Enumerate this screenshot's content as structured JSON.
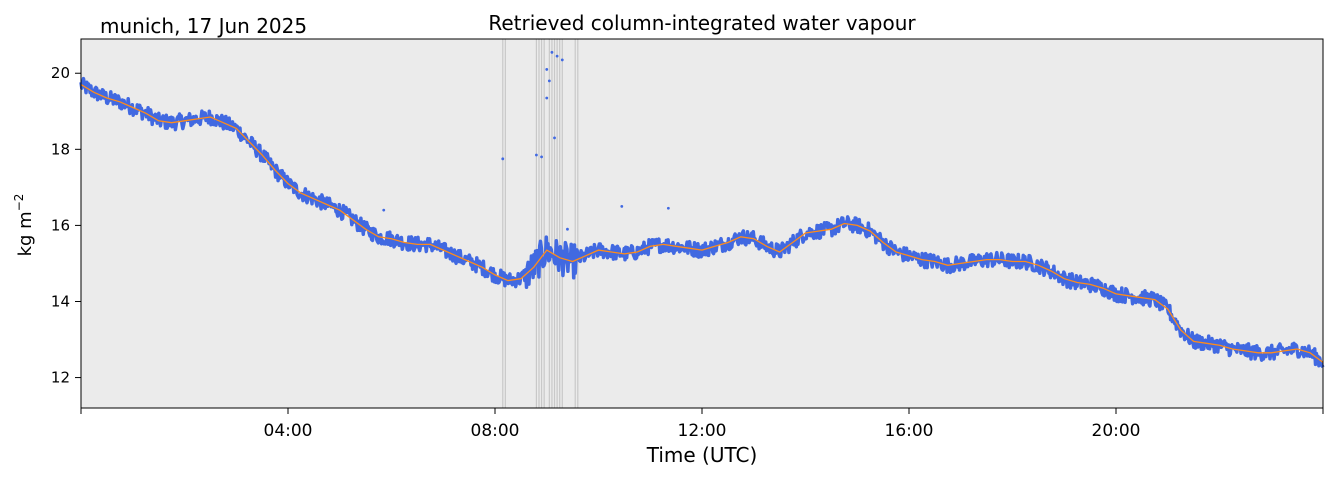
{
  "header": {
    "location_date": "munich, 17 Jun 2025"
  },
  "chart_data": {
    "type": "line",
    "title": "Retrieved column-integrated water vapour",
    "xlabel": "Time (UTC)",
    "ylabel_base": "kg m",
    "ylabel_exp": "−2",
    "xlim_hours": [
      0,
      24
    ],
    "ylim": [
      11.2,
      20.9
    ],
    "x_ticks": [
      {
        "hour": 4,
        "label": "04:00"
      },
      {
        "hour": 8,
        "label": "08:00"
      },
      {
        "hour": 12,
        "label": "12:00"
      },
      {
        "hour": 16,
        "label": "16:00"
      },
      {
        "hour": 20,
        "label": "20:00"
      }
    ],
    "y_ticks": [
      12,
      14,
      16,
      18,
      20
    ],
    "grid": false,
    "colors": {
      "background": "#ebebeb",
      "raw_series": "#4169e1",
      "smoothed_series": "#ff8c1a",
      "flag_lines": "#c8c8c8"
    },
    "series": [
      {
        "role": "raw",
        "x_hours": [
          0.0,
          0.25,
          0.5,
          0.75,
          1.0,
          1.25,
          1.5,
          1.75,
          2.0,
          2.25,
          2.5,
          2.75,
          3.0,
          3.25,
          3.5,
          3.75,
          4.0,
          4.25,
          4.5,
          4.75,
          5.0,
          5.25,
          5.5,
          5.75,
          6.0,
          6.25,
          6.5,
          6.75,
          7.0,
          7.25,
          7.5,
          7.75,
          8.0,
          8.25,
          8.5,
          8.75,
          9.0,
          9.25,
          9.5,
          9.75,
          10.0,
          10.25,
          10.5,
          10.75,
          11.0,
          11.25,
          11.5,
          11.75,
          12.0,
          12.25,
          12.5,
          12.75,
          13.0,
          13.25,
          13.5,
          13.75,
          14.0,
          14.25,
          14.5,
          14.75,
          15.0,
          15.25,
          15.5,
          15.75,
          16.0,
          16.25,
          16.5,
          16.75,
          17.0,
          17.25,
          17.5,
          17.75,
          18.0,
          18.25,
          18.5,
          18.75,
          19.0,
          19.25,
          19.5,
          19.75,
          20.0,
          20.25,
          20.5,
          20.75,
          21.0,
          21.25,
          21.5,
          21.75,
          22.0,
          22.25,
          22.5,
          22.75,
          23.0,
          23.25,
          23.5,
          23.75,
          24.0
        ],
        "y_mean": [
          19.7,
          19.5,
          19.35,
          19.25,
          19.1,
          18.95,
          18.75,
          18.7,
          18.75,
          18.8,
          18.85,
          18.7,
          18.55,
          18.2,
          17.85,
          17.45,
          17.1,
          16.85,
          16.7,
          16.55,
          16.4,
          16.15,
          15.9,
          15.7,
          15.65,
          15.55,
          15.5,
          15.5,
          15.35,
          15.2,
          15.05,
          14.9,
          14.7,
          14.55,
          14.6,
          14.9,
          15.35,
          15.15,
          15.05,
          15.2,
          15.35,
          15.3,
          15.25,
          15.3,
          15.45,
          15.5,
          15.45,
          15.4,
          15.35,
          15.45,
          15.55,
          15.7,
          15.65,
          15.45,
          15.3,
          15.55,
          15.8,
          15.85,
          15.9,
          16.05,
          16.0,
          15.85,
          15.55,
          15.3,
          15.2,
          15.1,
          15.05,
          14.95,
          15.0,
          15.05,
          15.1,
          15.1,
          15.05,
          15.05,
          14.95,
          14.8,
          14.6,
          14.5,
          14.45,
          14.35,
          14.2,
          14.15,
          14.1,
          14.05,
          13.8,
          13.25,
          12.95,
          12.9,
          12.85,
          12.75,
          12.7,
          12.65,
          12.65,
          12.7,
          12.75,
          12.65,
          12.4
        ]
      },
      {
        "role": "smoothed",
        "x_hours": [
          0.0,
          0.25,
          0.5,
          0.75,
          1.0,
          1.25,
          1.5,
          1.75,
          2.0,
          2.25,
          2.5,
          2.75,
          3.0,
          3.25,
          3.5,
          3.75,
          4.0,
          4.25,
          4.5,
          4.75,
          5.0,
          5.25,
          5.5,
          5.75,
          6.0,
          6.25,
          6.5,
          6.75,
          7.0,
          7.25,
          7.5,
          7.75,
          8.0,
          8.25,
          8.5,
          8.75,
          9.0,
          9.25,
          9.5,
          9.75,
          10.0,
          10.25,
          10.5,
          10.75,
          11.0,
          11.25,
          11.5,
          11.75,
          12.0,
          12.25,
          12.5,
          12.75,
          13.0,
          13.25,
          13.5,
          13.75,
          14.0,
          14.25,
          14.5,
          14.75,
          15.0,
          15.25,
          15.5,
          15.75,
          16.0,
          16.25,
          16.5,
          16.75,
          17.0,
          17.25,
          17.5,
          17.75,
          18.0,
          18.25,
          18.5,
          18.75,
          19.0,
          19.25,
          19.5,
          19.75,
          20.0,
          20.25,
          20.5,
          20.75,
          21.0,
          21.25,
          21.5,
          21.75,
          22.0,
          22.25,
          22.5,
          22.75,
          23.0,
          23.25,
          23.5,
          23.75,
          24.0
        ],
        "y": [
          19.7,
          19.5,
          19.35,
          19.25,
          19.1,
          18.95,
          18.75,
          18.7,
          18.75,
          18.8,
          18.85,
          18.7,
          18.55,
          18.2,
          17.85,
          17.45,
          17.1,
          16.85,
          16.7,
          16.55,
          16.4,
          16.15,
          15.9,
          15.7,
          15.65,
          15.55,
          15.5,
          15.5,
          15.35,
          15.2,
          15.05,
          14.9,
          14.7,
          14.55,
          14.6,
          14.9,
          15.35,
          15.15,
          15.05,
          15.2,
          15.35,
          15.3,
          15.25,
          15.3,
          15.45,
          15.5,
          15.45,
          15.4,
          15.35,
          15.45,
          15.55,
          15.7,
          15.65,
          15.45,
          15.3,
          15.55,
          15.8,
          15.85,
          15.9,
          16.05,
          16.0,
          15.85,
          15.55,
          15.3,
          15.2,
          15.1,
          15.05,
          14.95,
          15.0,
          15.05,
          15.1,
          15.1,
          15.05,
          15.05,
          14.95,
          14.8,
          14.6,
          14.5,
          14.45,
          14.35,
          14.2,
          14.15,
          14.1,
          14.05,
          13.8,
          13.25,
          12.95,
          12.9,
          12.85,
          12.75,
          12.7,
          12.65,
          12.65,
          12.7,
          12.75,
          12.65,
          12.4
        ]
      }
    ],
    "outliers": [
      {
        "x": 8.15,
        "y": 17.75
      },
      {
        "x": 8.8,
        "y": 17.85
      },
      {
        "x": 8.9,
        "y": 17.8
      },
      {
        "x": 9.0,
        "y": 19.35
      },
      {
        "x": 9.05,
        "y": 19.8
      },
      {
        "x": 9.1,
        "y": 20.55
      },
      {
        "x": 9.15,
        "y": 18.3
      },
      {
        "x": 9.2,
        "y": 20.45
      },
      {
        "x": 9.3,
        "y": 20.35
      },
      {
        "x": 9.0,
        "y": 20.1
      },
      {
        "x": 10.45,
        "y": 16.5
      },
      {
        "x": 11.35,
        "y": 16.45
      },
      {
        "x": 5.85,
        "y": 16.4
      },
      {
        "x": 9.4,
        "y": 15.9
      }
    ],
    "flag_lines_hours": [
      8.15,
      8.2,
      8.8,
      8.85,
      8.9,
      8.95,
      9.05,
      9.1,
      9.15,
      9.2,
      9.25,
      9.3,
      9.55,
      9.6
    ]
  }
}
